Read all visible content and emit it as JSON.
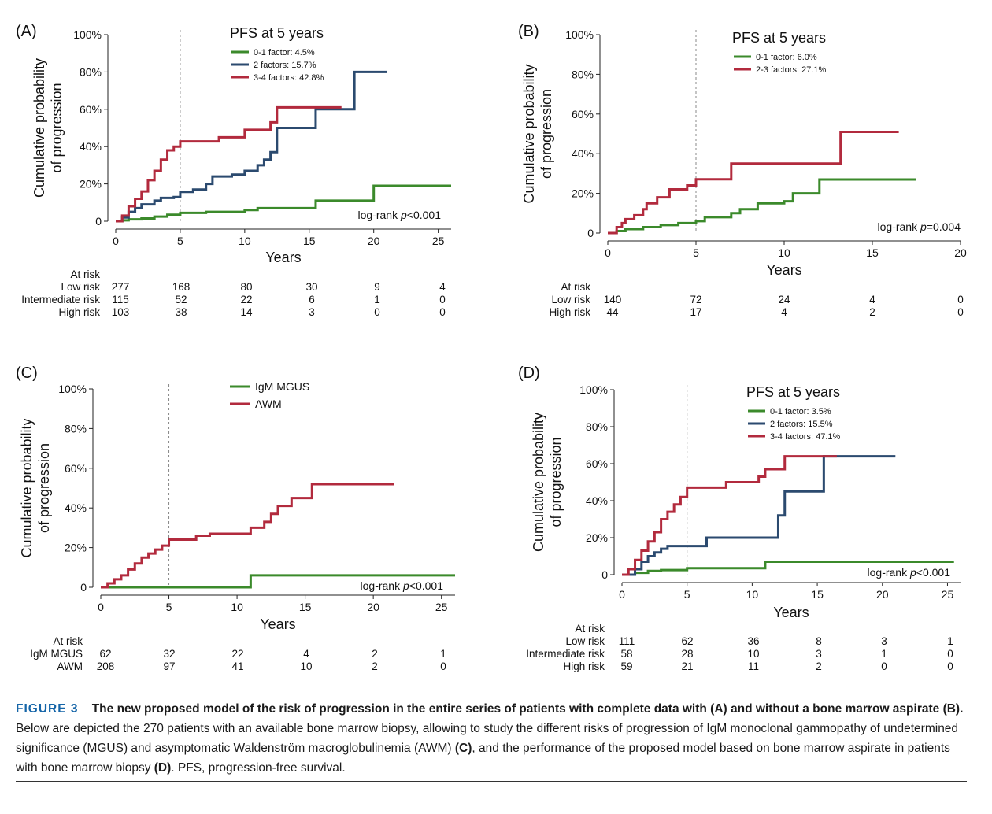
{
  "colors": {
    "green": "#3b8a2b",
    "blue": "#2b4a6f",
    "red": "#b22a3d",
    "axis": "#222222",
    "refline": "#888888"
  },
  "chart_data": [
    {
      "type": "line",
      "panel_label": "(A)",
      "xlabel": "Years",
      "ylabel_lines": [
        "Cumulative probability",
        "of progression"
      ],
      "xlim": [
        0,
        26
      ],
      "ylim": [
        0,
        100
      ],
      "xticks": [
        0,
        5,
        10,
        15,
        20,
        25
      ],
      "yticks": [
        0,
        20,
        40,
        60,
        80,
        100
      ],
      "ytick_labels": [
        "0",
        "20%",
        "40%",
        "60%",
        "80%",
        "100%"
      ],
      "ref_x": 5,
      "legend_title": "PFS at 5 years",
      "legend_position": "top-center",
      "annotation": "log-rank p<0.001",
      "annotation_parts": [
        "log-rank ",
        "p",
        "<0.001"
      ],
      "series": [
        {
          "name": "0-1 factor: 4.5%",
          "color": "green",
          "points": [
            [
              0,
              0
            ],
            [
              0.5,
              0.5
            ],
            [
              1,
              1
            ],
            [
              2,
              1.5
            ],
            [
              3,
              2.5
            ],
            [
              4,
              3.5
            ],
            [
              5,
              4.5
            ],
            [
              7,
              5
            ],
            [
              10,
              6
            ],
            [
              11,
              7
            ],
            [
              15.5,
              7
            ],
            [
              15.5,
              11
            ],
            [
              20,
              11
            ],
            [
              20,
              19
            ],
            [
              26,
              19
            ]
          ]
        },
        {
          "name": "2 factors: 15.7%",
          "color": "blue",
          "points": [
            [
              0,
              0
            ],
            [
              0.5,
              2
            ],
            [
              1,
              5
            ],
            [
              1.5,
              7
            ],
            [
              2,
              9
            ],
            [
              3,
              11
            ],
            [
              3.5,
              12.5
            ],
            [
              4.5,
              13
            ],
            [
              5,
              15.7
            ],
            [
              6,
              17
            ],
            [
              7,
              20
            ],
            [
              7.5,
              24
            ],
            [
              9,
              25
            ],
            [
              10,
              27
            ],
            [
              11,
              30
            ],
            [
              11.5,
              33
            ],
            [
              12,
              37
            ],
            [
              12.5,
              42
            ],
            [
              12.5,
              50
            ],
            [
              15.5,
              50
            ],
            [
              15.5,
              60
            ],
            [
              18.5,
              60
            ],
            [
              18.5,
              80
            ],
            [
              21,
              80
            ]
          ]
        },
        {
          "name": "3-4 factors: 42.8%",
          "color": "red",
          "points": [
            [
              0,
              0
            ],
            [
              0.5,
              3
            ],
            [
              1,
              8
            ],
            [
              1.5,
              12
            ],
            [
              2,
              16
            ],
            [
              2.5,
              22
            ],
            [
              3,
              27
            ],
            [
              3.5,
              33
            ],
            [
              4,
              38
            ],
            [
              4.5,
              40
            ],
            [
              5,
              42.8
            ],
            [
              8,
              45
            ],
            [
              10,
              49
            ],
            [
              12,
              53
            ],
            [
              12.5,
              55
            ],
            [
              12.5,
              61
            ],
            [
              17.5,
              61
            ]
          ]
        }
      ],
      "risk_table": {
        "title": "At risk",
        "columns_x": [
          0,
          5,
          10,
          15,
          20,
          25
        ],
        "rows": [
          {
            "label": "Low risk",
            "values": [
              "277",
              "168",
              "80",
              "30",
              "9",
              "4"
            ]
          },
          {
            "label": "Intermediate risk",
            "values": [
              "115",
              "52",
              "22",
              "6",
              "1",
              "0"
            ]
          },
          {
            "label": "High risk",
            "values": [
              "103",
              "38",
              "14",
              "3",
              "0",
              "0"
            ]
          }
        ]
      }
    },
    {
      "type": "line",
      "panel_label": "(B)",
      "xlabel": "Years",
      "ylabel_lines": [
        "Cumulative probability",
        "of progression"
      ],
      "xlim": [
        0,
        20
      ],
      "ylim": [
        0,
        100
      ],
      "xticks": [
        0,
        5,
        10,
        15,
        20
      ],
      "yticks": [
        0,
        20,
        40,
        60,
        80,
        100
      ],
      "ytick_labels": [
        "0",
        "20%",
        "40%",
        "60%",
        "80%",
        "100%"
      ],
      "ref_x": 5,
      "legend_title": "PFS at 5 years",
      "legend_position": "top-center",
      "annotation": "log-rank p=0.004",
      "annotation_parts": [
        "log-rank ",
        "p",
        "=0.004"
      ],
      "series": [
        {
          "name": "0-1 factor: 6.0%",
          "color": "green",
          "points": [
            [
              0,
              0
            ],
            [
              0.5,
              1
            ],
            [
              1,
              2
            ],
            [
              2,
              3
            ],
            [
              3,
              4
            ],
            [
              4,
              5
            ],
            [
              5,
              6
            ],
            [
              5.5,
              8
            ],
            [
              7,
              10
            ],
            [
              7.5,
              12
            ],
            [
              8.5,
              15
            ],
            [
              10,
              16
            ],
            [
              10.5,
              20
            ],
            [
              12,
              20
            ],
            [
              12,
              27
            ],
            [
              17.5,
              27
            ]
          ]
        },
        {
          "name": "2-3 factors: 27.1%",
          "color": "red",
          "points": [
            [
              0,
              0
            ],
            [
              0.5,
              3
            ],
            [
              0.8,
              5
            ],
            [
              1,
              7
            ],
            [
              1.5,
              9
            ],
            [
              2,
              12
            ],
            [
              2.2,
              15
            ],
            [
              2.8,
              18
            ],
            [
              3.5,
              22
            ],
            [
              4.5,
              24
            ],
            [
              5,
              27.1
            ],
            [
              7,
              27.1
            ],
            [
              7,
              35
            ],
            [
              13.2,
              35
            ],
            [
              13.2,
              51
            ],
            [
              16.5,
              51
            ]
          ]
        }
      ],
      "risk_table": {
        "title": "At risk",
        "columns_x": [
          0,
          5,
          10,
          15,
          20
        ],
        "rows": [
          {
            "label": "Low risk",
            "values": [
              "140",
              "72",
              "24",
              "4",
              "0"
            ]
          },
          {
            "label": "High risk",
            "values": [
              "44",
              "17",
              "4",
              "2",
              "0"
            ]
          }
        ]
      }
    },
    {
      "type": "line",
      "panel_label": "(C)",
      "xlabel": "Years",
      "ylabel_lines": [
        "Cumulative probability",
        "of progression"
      ],
      "xlim": [
        0,
        26
      ],
      "ylim": [
        0,
        100
      ],
      "xticks": [
        0,
        5,
        10,
        15,
        20,
        25
      ],
      "yticks": [
        0,
        20,
        40,
        60,
        80,
        100
      ],
      "ytick_labels": [
        "0",
        "20%",
        "40%",
        "60%",
        "80%",
        "100%"
      ],
      "ref_x": 5,
      "legend_title": "",
      "legend_position": "top-center",
      "annotation": "log-rank p<0.001",
      "annotation_parts": [
        "log-rank ",
        "p",
        "<0.001"
      ],
      "series": [
        {
          "name": "IgM MGUS",
          "color": "green",
          "points": [
            [
              0,
              0
            ],
            [
              11,
              0
            ],
            [
              11,
              6
            ],
            [
              26,
              6
            ]
          ]
        },
        {
          "name": "AWM",
          "color": "red",
          "points": [
            [
              0,
              0
            ],
            [
              0.5,
              2
            ],
            [
              1,
              4
            ],
            [
              1.5,
              6
            ],
            [
              2,
              9
            ],
            [
              2.5,
              12
            ],
            [
              3,
              15
            ],
            [
              3.5,
              17
            ],
            [
              4,
              19
            ],
            [
              4.5,
              21
            ],
            [
              5,
              24
            ],
            [
              7,
              26
            ],
            [
              8,
              27
            ],
            [
              11,
              30
            ],
            [
              12,
              33
            ],
            [
              12.5,
              37
            ],
            [
              13,
              41
            ],
            [
              14,
              45
            ],
            [
              15.5,
              45
            ],
            [
              15.5,
              52
            ],
            [
              21.5,
              52
            ]
          ]
        }
      ],
      "risk_table": {
        "title": "At risk",
        "columns_x": [
          0,
          5,
          10,
          15,
          20,
          25
        ],
        "rows": [
          {
            "label": "IgM MGUS",
            "values": [
              "62",
              "32",
              "22",
              "4",
              "2",
              "1"
            ]
          },
          {
            "label": "AWM",
            "values": [
              "208",
              "97",
              "41",
              "10",
              "2",
              "0"
            ]
          }
        ]
      }
    },
    {
      "type": "line",
      "panel_label": "(D)",
      "xlabel": "Years",
      "ylabel_lines": [
        "Cumulative probability",
        "of progression"
      ],
      "xlim": [
        0,
        26
      ],
      "ylim": [
        0,
        100
      ],
      "xticks": [
        0,
        5,
        10,
        15,
        20,
        25
      ],
      "yticks": [
        0,
        20,
        40,
        60,
        80,
        100
      ],
      "ytick_labels": [
        "0",
        "20%",
        "40%",
        "60%",
        "80%",
        "100%"
      ],
      "ref_x": 5,
      "legend_title": "PFS at 5 years",
      "legend_position": "top-center",
      "annotation": "log-rank p<0.001",
      "annotation_parts": [
        "log-rank ",
        "p",
        "<0.001"
      ],
      "series": [
        {
          "name": "0-1 factor: 3.5%",
          "color": "green",
          "points": [
            [
              0,
              0
            ],
            [
              1,
              1
            ],
            [
              2,
              2
            ],
            [
              3,
              2.5
            ],
            [
              5,
              3.5
            ],
            [
              11,
              3.5
            ],
            [
              11,
              7
            ],
            [
              25.5,
              7
            ]
          ]
        },
        {
          "name": "2 factors: 15.5%",
          "color": "blue",
          "points": [
            [
              0,
              0
            ],
            [
              1,
              3
            ],
            [
              1.5,
              7
            ],
            [
              2,
              10
            ],
            [
              2.5,
              12
            ],
            [
              3,
              14
            ],
            [
              3.5,
              15.5
            ],
            [
              6.5,
              15.5
            ],
            [
              6.5,
              20
            ],
            [
              12,
              20
            ],
            [
              12,
              32
            ],
            [
              12.5,
              45
            ],
            [
              15.5,
              45
            ],
            [
              15.5,
              64
            ],
            [
              21,
              64
            ]
          ]
        },
        {
          "name": "3-4 factors: 47.1%",
          "color": "red",
          "points": [
            [
              0,
              0
            ],
            [
              0.5,
              3
            ],
            [
              1,
              8
            ],
            [
              1.5,
              13
            ],
            [
              2,
              18
            ],
            [
              2.5,
              23
            ],
            [
              3,
              30
            ],
            [
              3.5,
              34
            ],
            [
              4,
              38
            ],
            [
              4.5,
              42
            ],
            [
              5,
              47.1
            ],
            [
              8,
              50
            ],
            [
              10.5,
              53
            ],
            [
              11,
              57
            ],
            [
              12.5,
              60
            ],
            [
              12.5,
              64
            ],
            [
              16.5,
              64
            ]
          ]
        }
      ],
      "risk_table": {
        "title": "At risk",
        "columns_x": [
          0,
          5,
          10,
          15,
          20,
          25
        ],
        "rows": [
          {
            "label": "Low risk",
            "values": [
              "111",
              "62",
              "36",
              "8",
              "3",
              "1"
            ]
          },
          {
            "label": "Intermediate risk",
            "values": [
              "58",
              "28",
              "10",
              "3",
              "1",
              "0"
            ]
          },
          {
            "label": "High risk",
            "values": [
              "59",
              "21",
              "11",
              "2",
              "0",
              "0"
            ]
          }
        ]
      }
    }
  ],
  "caption": {
    "figure_label": "FIGURE 3",
    "parts": [
      {
        "text": "The new proposed model of the risk of progression in the entire series of patients with complete data with (A) and without a bone marrow aspirate (B).",
        "bold": true
      },
      {
        "text": " Below are depicted the 270 patients with an available bone marrow biopsy, allowing to study the different risks of progression of IgM monoclonal gammopathy of undetermined significance (MGUS) and asymptomatic Waldenström macroglobulinemia (AWM) ",
        "bold": false
      },
      {
        "text": "(C)",
        "bold": true
      },
      {
        "text": ", and the performance of the proposed model based on bone marrow aspirate in patients with bone marrow biopsy ",
        "bold": false
      },
      {
        "text": "(D)",
        "bold": true
      },
      {
        "text": ". PFS, progression-free survival.",
        "bold": false
      }
    ]
  }
}
